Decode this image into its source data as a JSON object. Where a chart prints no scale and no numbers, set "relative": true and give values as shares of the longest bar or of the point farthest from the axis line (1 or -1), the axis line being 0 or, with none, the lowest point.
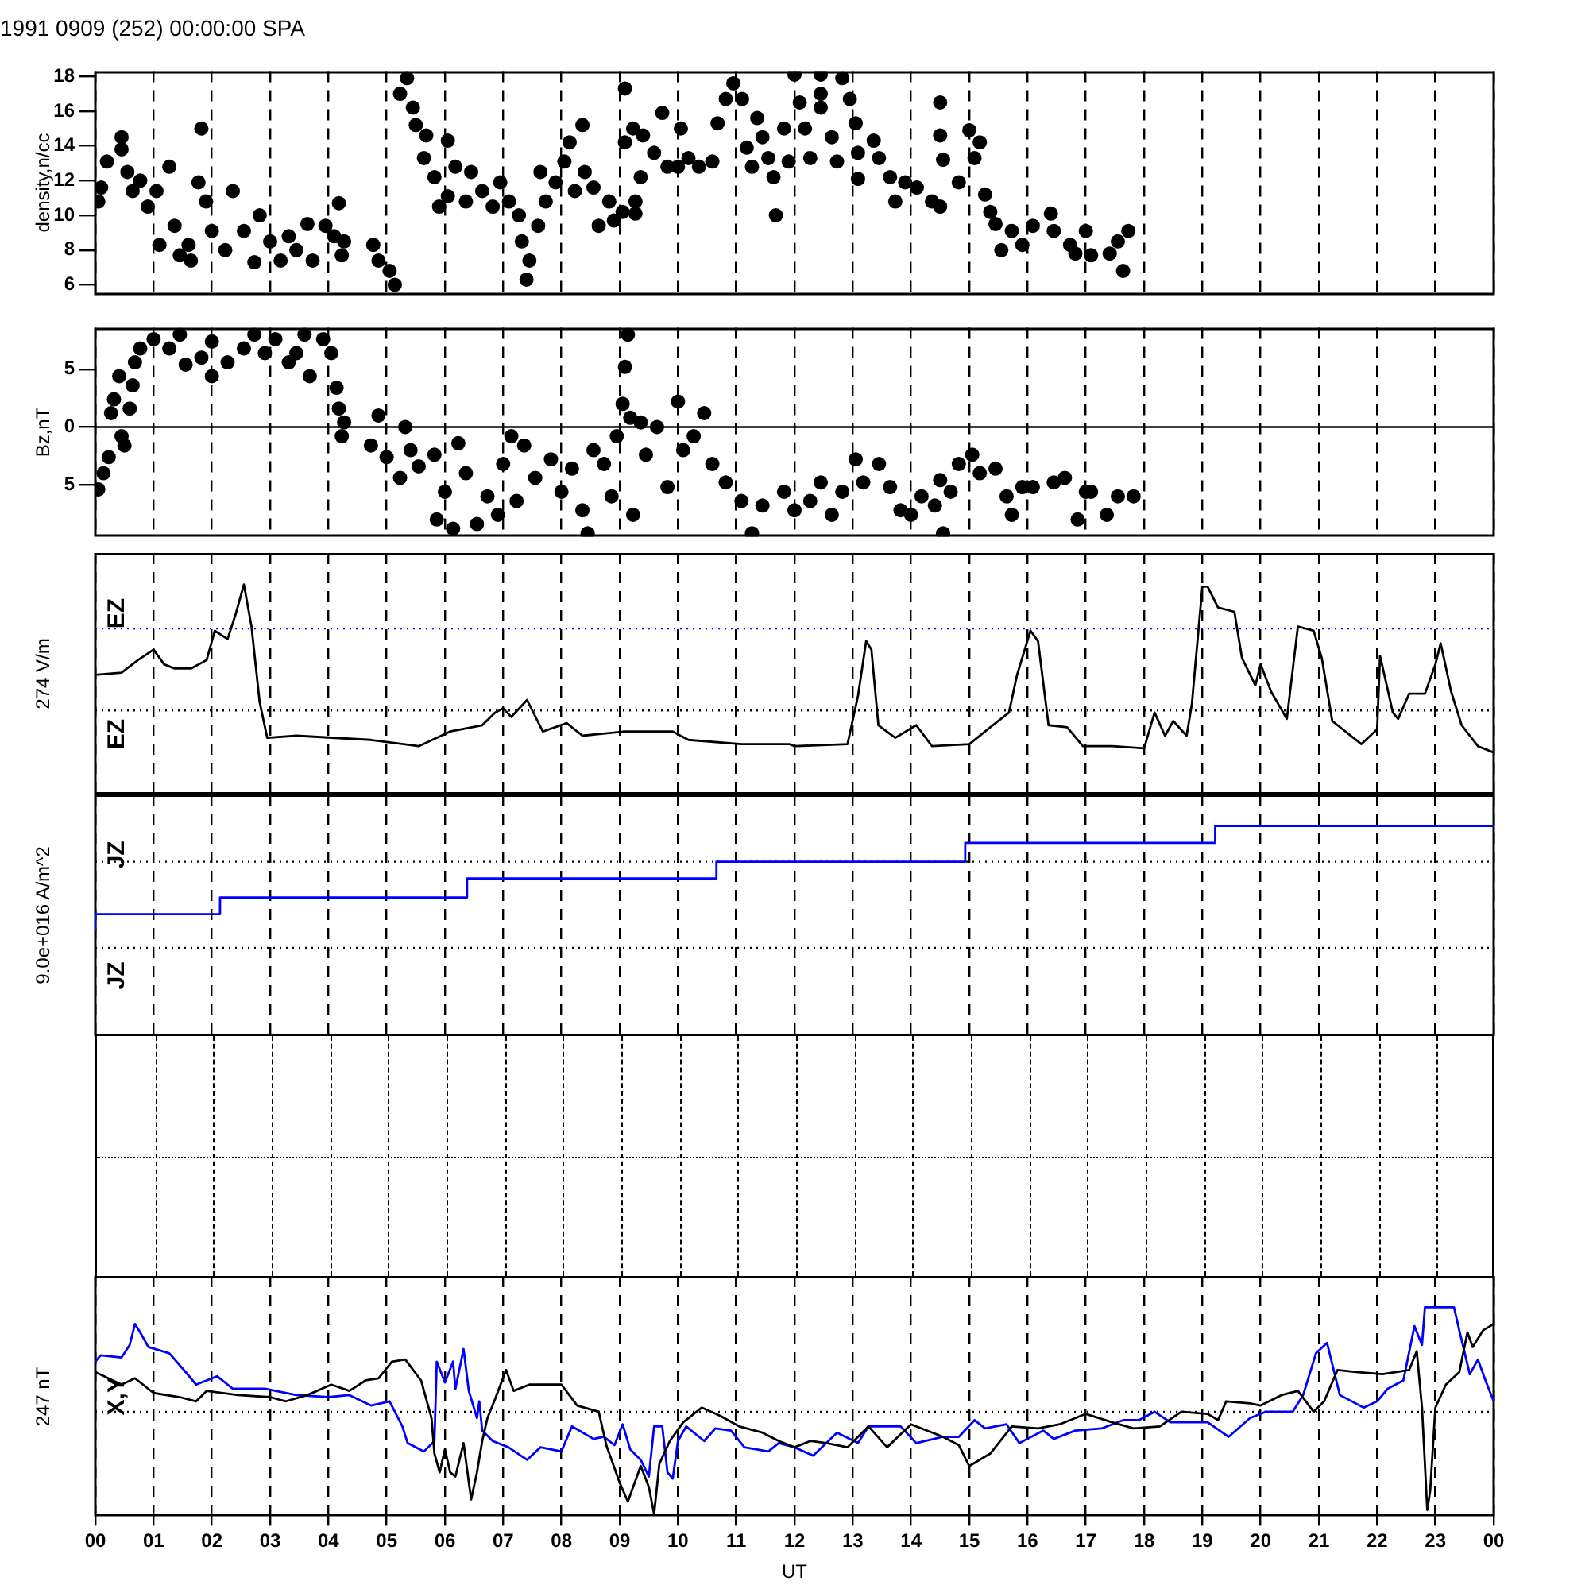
{
  "chart_data": [
    {
      "type": "scatter",
      "title": "1991 0909 (252) 00:00:00 SPA",
      "ylabel": "density,n/cc",
      "color": "#000000",
      "marker": "circle",
      "grid": "x",
      "tick_labels": "y",
      "legend": false,
      "xlim": [
        0,
        24
      ],
      "xticks": [
        0,
        1,
        2,
        3,
        4,
        5,
        6,
        7,
        8,
        9,
        10,
        11,
        12,
        13,
        14,
        15,
        16,
        17,
        18,
        19,
        20,
        21,
        22,
        23,
        24
      ],
      "ylim": [
        5.4,
        18.3
      ],
      "yticks": [
        6,
        8,
        10,
        12,
        14,
        16,
        18
      ],
      "x": [
        0.05,
        0.1,
        0.2,
        0.45,
        0.45,
        0.55,
        0.64,
        0.77,
        0.9,
        1.05,
        1.1,
        1.27,
        1.36,
        1.45,
        1.6,
        1.64,
        1.77,
        1.82,
        1.9,
        2.0,
        2.23,
        2.36,
        2.55,
        2.73,
        2.82,
        3.0,
        3.18,
        3.32,
        3.45,
        3.64,
        3.73,
        3.95,
        4.1,
        4.18,
        4.23,
        4.27,
        4.77,
        4.86,
        5.05,
        5.14,
        5.23,
        5.35,
        5.45,
        5.5,
        5.68,
        5.64,
        5.82,
        5.9,
        6.05,
        6.05,
        6.18,
        6.36,
        6.45,
        6.64,
        6.82,
        6.95,
        7.1,
        7.27,
        7.32,
        7.4,
        7.45,
        7.6,
        7.64,
        7.73,
        7.9,
        8.05,
        8.14,
        8.23,
        8.36,
        8.4,
        8.55,
        8.64,
        8.82,
        8.9,
        9.05,
        9.09,
        9.09,
        9.23,
        9.27,
        9.27,
        9.36,
        9.4,
        9.59,
        9.73,
        9.82,
        10.05,
        10.0,
        10.18,
        10.36,
        10.59,
        10.68,
        10.82,
        10.95,
        11.1,
        11.18,
        11.27,
        11.36,
        11.45,
        11.55,
        11.64,
        11.68,
        11.82,
        11.9,
        12.0,
        12.09,
        12.18,
        12.45,
        12.45,
        12.27,
        12.45,
        12.64,
        12.73,
        12.82,
        12.95,
        13.05,
        13.09,
        13.09,
        13.36,
        13.45,
        13.64,
        13.73,
        13.9,
        14.1,
        14.36,
        14.5,
        14.5,
        14.5,
        14.55,
        14.82,
        15.0,
        15.09,
        15.18,
        15.27,
        15.36,
        15.45,
        15.55,
        15.73,
        15.91,
        16.09,
        16.4,
        16.45,
        16.73,
        16.82,
        17.0,
        17.09,
        17.41,
        17.55,
        17.64,
        17.73
      ],
      "values": [
        10.8,
        11.6,
        13.1,
        14.5,
        13.8,
        12.5,
        11.4,
        12.0,
        10.5,
        11.4,
        8.3,
        12.8,
        9.4,
        7.7,
        8.3,
        7.4,
        11.9,
        15.0,
        10.8,
        9.1,
        8.0,
        11.4,
        9.1,
        7.3,
        10.0,
        8.5,
        7.4,
        8.8,
        8.0,
        9.5,
        7.4,
        9.4,
        8.8,
        10.7,
        7.7,
        8.5,
        8.3,
        7.4,
        6.8,
        6.0,
        17.0,
        17.9,
        16.2,
        15.2,
        14.6,
        13.3,
        12.2,
        10.5,
        14.3,
        11.1,
        12.8,
        10.8,
        12.5,
        11.4,
        10.5,
        11.9,
        10.8,
        10.0,
        8.5,
        6.3,
        7.4,
        9.4,
        12.5,
        10.8,
        11.9,
        13.1,
        14.2,
        11.4,
        15.2,
        12.5,
        11.6,
        9.4,
        10.8,
        9.7,
        10.2,
        17.3,
        14.2,
        15.0,
        10.8,
        10.1,
        12.2,
        14.6,
        13.6,
        15.9,
        12.8,
        15.0,
        12.8,
        13.3,
        12.8,
        13.1,
        15.3,
        16.7,
        17.6,
        16.7,
        13.9,
        12.8,
        15.6,
        14.5,
        13.3,
        12.2,
        10.0,
        15.0,
        13.1,
        18.1,
        16.5,
        15.0,
        18.1,
        17.0,
        13.3,
        16.2,
        14.5,
        13.1,
        17.9,
        16.7,
        15.3,
        13.6,
        12.1,
        14.3,
        13.3,
        12.2,
        10.8,
        11.9,
        11.6,
        10.8,
        10.5,
        16.5,
        14.6,
        13.2,
        11.9,
        14.9,
        13.3,
        14.2,
        11.2,
        10.2,
        9.5,
        8.0,
        9.1,
        8.3,
        9.4,
        10.1,
        9.1,
        8.3,
        7.8,
        9.1,
        7.7,
        7.8,
        8.5,
        6.8,
        9.1
      ]
    },
    {
      "type": "scatter",
      "ylabel": "Bz,nT",
      "color": "#000000",
      "marker": "circle",
      "grid": "x",
      "tick_labels": "y",
      "legend": false,
      "xlim": [
        0,
        24
      ],
      "xticks": [
        0,
        1,
        2,
        3,
        4,
        5,
        6,
        7,
        8,
        9,
        10,
        11,
        12,
        13,
        14,
        15,
        16,
        17,
        18,
        19,
        20,
        21,
        22,
        23,
        24
      ],
      "ylim": [
        -9.5,
        8.6
      ],
      "yticks": [
        {
          "value": -5,
          "label": "5"
        },
        0,
        5
      ],
      "ref_lines": [
        {
          "axis": "y",
          "value": 0,
          "color": "#000000"
        }
      ],
      "x": [
        0.05,
        0.14,
        0.23,
        0.27,
        0.32,
        0.41,
        0.45,
        0.5,
        0.59,
        0.64,
        0.68,
        0.77,
        1.0,
        1.27,
        1.45,
        1.55,
        1.82,
        2.0,
        2.0,
        2.27,
        2.55,
        2.73,
        2.91,
        3.09,
        3.32,
        3.45,
        3.59,
        3.68,
        3.91,
        4.05,
        4.14,
        4.18,
        4.23,
        4.27,
        4.73,
        4.86,
        5.0,
        5.23,
        5.32,
        5.41,
        5.55,
        5.82,
        5.86,
        6.0,
        6.14,
        6.23,
        6.36,
        6.55,
        6.73,
        6.91,
        7.0,
        7.14,
        7.23,
        7.36,
        7.55,
        7.82,
        8.0,
        8.18,
        8.36,
        8.45,
        8.55,
        8.73,
        8.86,
        8.95,
        9.05,
        9.09,
        9.14,
        9.18,
        9.23,
        9.36,
        9.45,
        9.64,
        9.82,
        10.0,
        10.09,
        10.27,
        10.45,
        10.59,
        10.82,
        11.09,
        11.27,
        11.45,
        11.82,
        12.0,
        12.27,
        12.45,
        12.64,
        12.82,
        13.05,
        13.18,
        13.45,
        13.64,
        13.82,
        14.0,
        14.18,
        14.41,
        14.5,
        14.55,
        14.68,
        14.82,
        15.05,
        15.18,
        15.45,
        15.64,
        15.73,
        15.91,
        16.09,
        16.45,
        16.64,
        16.86,
        17.0,
        17.09,
        17.36,
        17.55,
        17.82
      ],
      "values": [
        -5.4,
        -4.0,
        -2.6,
        1.2,
        2.4,
        4.4,
        -0.8,
        -1.6,
        1.6,
        3.6,
        5.6,
        6.8,
        7.6,
        6.8,
        8.0,
        5.4,
        6.0,
        4.4,
        7.4,
        5.6,
        6.8,
        8.0,
        6.4,
        7.6,
        5.6,
        6.4,
        8.0,
        4.4,
        7.6,
        6.4,
        3.4,
        1.6,
        -0.8,
        0.4,
        -1.6,
        1.0,
        -2.6,
        -4.4,
        0.0,
        -2.0,
        -3.4,
        -2.4,
        -8.0,
        -5.6,
        -8.8,
        -1.4,
        -4.0,
        -8.4,
        -6.0,
        -7.6,
        -3.2,
        -0.8,
        -6.4,
        -1.6,
        -4.4,
        -2.8,
        -5.6,
        -3.6,
        -7.2,
        -9.2,
        -2.0,
        -3.2,
        -6.0,
        -0.8,
        2.0,
        5.2,
        8.0,
        0.8,
        -7.6,
        0.4,
        -2.4,
        0.0,
        -5.2,
        2.2,
        -2.0,
        -0.8,
        1.2,
        -3.2,
        -4.8,
        -6.4,
        -9.2,
        -6.8,
        -5.6,
        -7.2,
        -6.4,
        -4.8,
        -7.6,
        -5.6,
        -2.8,
        -4.8,
        -3.2,
        -5.2,
        -7.2,
        -7.6,
        -6.0,
        -6.8,
        -4.6,
        -9.2,
        -5.6,
        -3.2,
        -2.4,
        -4.0,
        -3.6,
        -6.0,
        -7.6,
        -5.2,
        -5.2,
        -4.8,
        -4.4,
        -8.0,
        -5.6,
        -5.6,
        -7.6,
        -6.0,
        -6.0
      ]
    },
    {
      "type": "line",
      "relative": true,
      "ylabel": "274 V/m",
      "annotations": [
        "EZ",
        "EZ"
      ],
      "color": "#000000",
      "grid": "x",
      "tick_labels": false,
      "legend": false,
      "xlim": [
        0,
        24
      ],
      "xticks": [
        0,
        1,
        2,
        3,
        4,
        5,
        6,
        7,
        8,
        9,
        10,
        11,
        12,
        13,
        14,
        15,
        16,
        17,
        18,
        19,
        20,
        21,
        22,
        23,
        24
      ],
      "ref_lines": [
        {
          "axis": "y",
          "value": 0.79,
          "color": "#0000ff",
          "line_style": "dotted"
        },
        {
          "axis": "y",
          "value": 0.4,
          "color": "#000000",
          "line_style": "dotted"
        }
      ],
      "x": [
        0,
        0.45,
        0.73,
        1.0,
        1.18,
        1.36,
        1.64,
        1.91,
        2.05,
        2.27,
        2.41,
        2.55,
        2.68,
        2.82,
        2.95,
        3.45,
        4.73,
        5.55,
        6.09,
        6.64,
        6.86,
        7.0,
        7.14,
        7.41,
        7.68,
        8.09,
        8.36,
        9.09,
        9.91,
        10.18,
        11.09,
        11.91,
        12.0,
        12.91,
        13.09,
        13.23,
        13.32,
        13.44,
        13.73,
        14.09,
        14.36,
        15.0,
        15.36,
        15.68,
        15.82,
        16.05,
        16.18,
        16.36,
        16.68,
        16.95,
        17.45,
        18.0,
        18.18,
        18.36,
        18.5,
        18.73,
        18.82,
        19.0,
        19.09,
        19.27,
        19.55,
        19.68,
        19.91,
        20.0,
        20.18,
        20.45,
        20.64,
        20.91,
        21.05,
        21.23,
        21.73,
        22.0,
        22.05,
        22.27,
        22.36,
        22.55,
        22.82,
        23.0,
        23.09,
        23.27,
        23.45,
        23.73,
        24.0
      ],
      "values": [
        0.57,
        0.58,
        0.64,
        0.69,
        0.62,
        0.6,
        0.6,
        0.64,
        0.78,
        0.74,
        0.86,
        1,
        0.8,
        0.44,
        0.27,
        0.28,
        0.26,
        0.23,
        0.3,
        0.33,
        0.39,
        0.41,
        0.37,
        0.45,
        0.3,
        0.34,
        0.28,
        0.3,
        0.3,
        0.26,
        0.24,
        0.24,
        0.23,
        0.24,
        0.47,
        0.73,
        0.69,
        0.33,
        0.27,
        0.33,
        0.23,
        0.24,
        0.32,
        0.39,
        0.57,
        0.78,
        0.73,
        0.33,
        0.32,
        0.23,
        0.23,
        0.22,
        0.39,
        0.28,
        0.35,
        0.28,
        0.43,
        0.99,
        0.99,
        0.89,
        0.87,
        0.65,
        0.52,
        0.62,
        0.49,
        0.36,
        0.8,
        0.78,
        0.65,
        0.35,
        0.24,
        0.31,
        0.66,
        0.39,
        0.36,
        0.48,
        0.48,
        0.62,
        0.72,
        0.49,
        0.33,
        0.23,
        0.2
      ]
    },
    {
      "type": "step",
      "relative": true,
      "ylabel": "9.0e+016 A/m^2",
      "annotations": [
        "JZ",
        "JZ"
      ],
      "color": "#0000ff",
      "grid": "x",
      "tick_labels": false,
      "legend": false,
      "xlim": [
        0,
        24
      ],
      "xticks": [
        0,
        1,
        2,
        3,
        4,
        5,
        6,
        7,
        8,
        9,
        10,
        11,
        12,
        13,
        14,
        15,
        16,
        17,
        18,
        19,
        20,
        21,
        22,
        23,
        24
      ],
      "ref_lines": [
        {
          "axis": "y",
          "value": 0.83,
          "color": "#000000",
          "line_style": "dotted"
        },
        {
          "axis": "y",
          "value": 0.42,
          "color": "#000000",
          "line_style": "dotted"
        }
      ],
      "x": [
        0,
        2.14,
        6.38,
        10.66,
        14.93,
        19.22,
        23.45,
        24
      ],
      "values": [
        0.5,
        0.58,
        0.66,
        0.75,
        0.83,
        0.92,
        1,
        1
      ]
    },
    {
      "type": "line",
      "relative": true,
      "ylabel": "247 nT",
      "xlabel": "UT",
      "annotations": [
        "X,Y"
      ],
      "grid": "x",
      "tick_labels": "x",
      "legend": false,
      "xlim": [
        0,
        24
      ],
      "xticks": [
        {
          "value": 0,
          "label": "00"
        },
        {
          "value": 1,
          "label": "01"
        },
        {
          "value": 2,
          "label": "02"
        },
        {
          "value": 3,
          "label": "03"
        },
        {
          "value": 4,
          "label": "04"
        },
        {
          "value": 5,
          "label": "05"
        },
        {
          "value": 6,
          "label": "06"
        },
        {
          "value": 7,
          "label": "07"
        },
        {
          "value": 8,
          "label": "08"
        },
        {
          "value": 9,
          "label": "09"
        },
        {
          "value": 10,
          "label": "10"
        },
        {
          "value": 11,
          "label": "11"
        },
        {
          "value": 12,
          "label": "12"
        },
        {
          "value": 13,
          "label": "13"
        },
        {
          "value": 14,
          "label": "14"
        },
        {
          "value": 15,
          "label": "15"
        },
        {
          "value": 16,
          "label": "16"
        },
        {
          "value": 17,
          "label": "17"
        },
        {
          "value": 18,
          "label": "18"
        },
        {
          "value": 19,
          "label": "19"
        },
        {
          "value": 20,
          "label": "20"
        },
        {
          "value": 21,
          "label": "21"
        },
        {
          "value": 22,
          "label": "22"
        },
        {
          "value": 23,
          "label": "23"
        },
        {
          "value": 24,
          "label": "00"
        }
      ],
      "ref_lines": [
        {
          "axis": "y",
          "value": 0.5,
          "color": "#000000",
          "line_style": "dotted"
        }
      ],
      "series": [
        {
          "color": "#000000",
          "x": [
            0,
            0.45,
            0.68,
            1.0,
            1.45,
            1.73,
            1.91,
            2.45,
            3.0,
            3.27,
            3.64,
            4.05,
            4.36,
            4.64,
            4.86,
            5.09,
            5.32,
            5.59,
            5.77,
            5.82,
            5.91,
            6.0,
            6.09,
            6.18,
            6.32,
            6.45,
            6.55,
            6.64,
            6.73,
            6.86,
            7.05,
            7.18,
            7.45,
            7.73,
            8.0,
            8.27,
            8.64,
            8.77,
            9.0,
            9.14,
            9.36,
            9.5,
            9.59,
            9.68,
            9.86,
            10.09,
            10.41,
            10.73,
            11.05,
            11.45,
            11.73,
            12.0,
            12.27,
            12.55,
            12.91,
            13.27,
            13.59,
            14.0,
            14.55,
            14.82,
            15.0,
            15.36,
            15.73,
            16.18,
            16.55,
            17.0,
            17.45,
            17.82,
            18.27,
            18.64,
            19.09,
            19.27,
            19.41,
            19.82,
            20.0,
            20.36,
            20.64,
            20.91,
            21.09,
            21.32,
            21.64,
            22.09,
            22.55,
            22.68,
            22.77,
            22.86,
            22.91,
            23.0,
            23.18,
            23.41,
            23.55,
            23.64,
            23.82,
            24.0
          ],
          "values": [
            0.69,
            0.63,
            0.66,
            0.59,
            0.57,
            0.55,
            0.6,
            0.58,
            0.57,
            0.55,
            0.58,
            0.63,
            0.6,
            0.65,
            0.66,
            0.74,
            0.75,
            0.65,
            0.47,
            0.3,
            0.21,
            0.32,
            0.21,
            0.19,
            0.35,
            0.08,
            0.21,
            0.36,
            0.47,
            0.56,
            0.7,
            0.6,
            0.63,
            0.63,
            0.63,
            0.53,
            0.5,
            0.34,
            0.16,
            0.07,
            0.24,
            0.14,
            0.01,
            0.25,
            0.36,
            0.45,
            0.52,
            0.48,
            0.43,
            0.4,
            0.36,
            0.33,
            0.36,
            0.35,
            0.33,
            0.43,
            0.33,
            0.44,
            0.38,
            0.34,
            0.24,
            0.3,
            0.43,
            0.42,
            0.44,
            0.49,
            0.45,
            0.42,
            0.43,
            0.5,
            0.49,
            0.46,
            0.55,
            0.54,
            0.53,
            0.58,
            0.6,
            0.5,
            0.55,
            0.7,
            0.69,
            0.68,
            0.7,
            0.79,
            0.52,
            0.03,
            0.12,
            0.52,
            0.63,
            0.69,
            0.88,
            0.81,
            0.89,
            0.92
          ]
        },
        {
          "color": "#0000ff",
          "x": [
            0,
            0.09,
            0.45,
            0.59,
            0.68,
            0.77,
            0.91,
            1.27,
            1.55,
            1.73,
            2.09,
            2.36,
            2.91,
            3.45,
            4.0,
            4.36,
            4.73,
            5.05,
            5.27,
            5.36,
            5.64,
            5.82,
            5.86,
            6.0,
            6.14,
            6.18,
            6.32,
            6.41,
            6.55,
            6.59,
            6.64,
            6.82,
            7.09,
            7.41,
            7.64,
            8.0,
            8.18,
            8.55,
            8.73,
            8.91,
            9.05,
            9.18,
            9.36,
            9.5,
            9.59,
            9.73,
            9.82,
            9.91,
            10.0,
            10.14,
            10.45,
            10.64,
            10.91,
            11.14,
            11.55,
            11.73,
            12.0,
            12.32,
            12.73,
            13.09,
            13.27,
            13.82,
            14.09,
            14.55,
            14.82,
            15.09,
            15.27,
            15.64,
            15.86,
            16.27,
            16.45,
            16.82,
            17.27,
            17.64,
            17.91,
            18.18,
            18.45,
            19.09,
            19.45,
            19.82,
            20.09,
            20.55,
            20.73,
            20.95,
            21.14,
            21.36,
            21.77,
            22.0,
            22.18,
            22.45,
            22.64,
            22.77,
            22.82,
            23.32,
            23.41,
            23.59,
            23.73,
            23.86,
            24.0
          ],
          "values": [
            0.74,
            0.77,
            0.76,
            0.82,
            0.92,
            0.88,
            0.81,
            0.78,
            0.69,
            0.63,
            0.67,
            0.61,
            0.61,
            0.58,
            0.57,
            0.58,
            0.53,
            0.55,
            0.43,
            0.35,
            0.31,
            0.36,
            0.74,
            0.64,
            0.74,
            0.61,
            0.8,
            0.6,
            0.47,
            0.55,
            0.41,
            0.36,
            0.33,
            0.27,
            0.33,
            0.31,
            0.43,
            0.37,
            0.38,
            0.34,
            0.44,
            0.32,
            0.27,
            0.19,
            0.43,
            0.43,
            0.21,
            0.18,
            0.36,
            0.43,
            0.36,
            0.42,
            0.41,
            0.33,
            0.31,
            0.35,
            0.33,
            0.29,
            0.4,
            0.35,
            0.43,
            0.43,
            0.35,
            0.38,
            0.38,
            0.46,
            0.42,
            0.44,
            0.35,
            0.41,
            0.37,
            0.41,
            0.42,
            0.46,
            0.46,
            0.5,
            0.45,
            0.45,
            0.38,
            0.47,
            0.5,
            0.5,
            0.58,
            0.78,
            0.83,
            0.58,
            0.52,
            0.55,
            0.61,
            0.65,
            0.91,
            0.82,
            1,
            1,
            0.89,
            0.68,
            0.75,
            0.65,
            0.55
          ]
        }
      ]
    }
  ]
}
